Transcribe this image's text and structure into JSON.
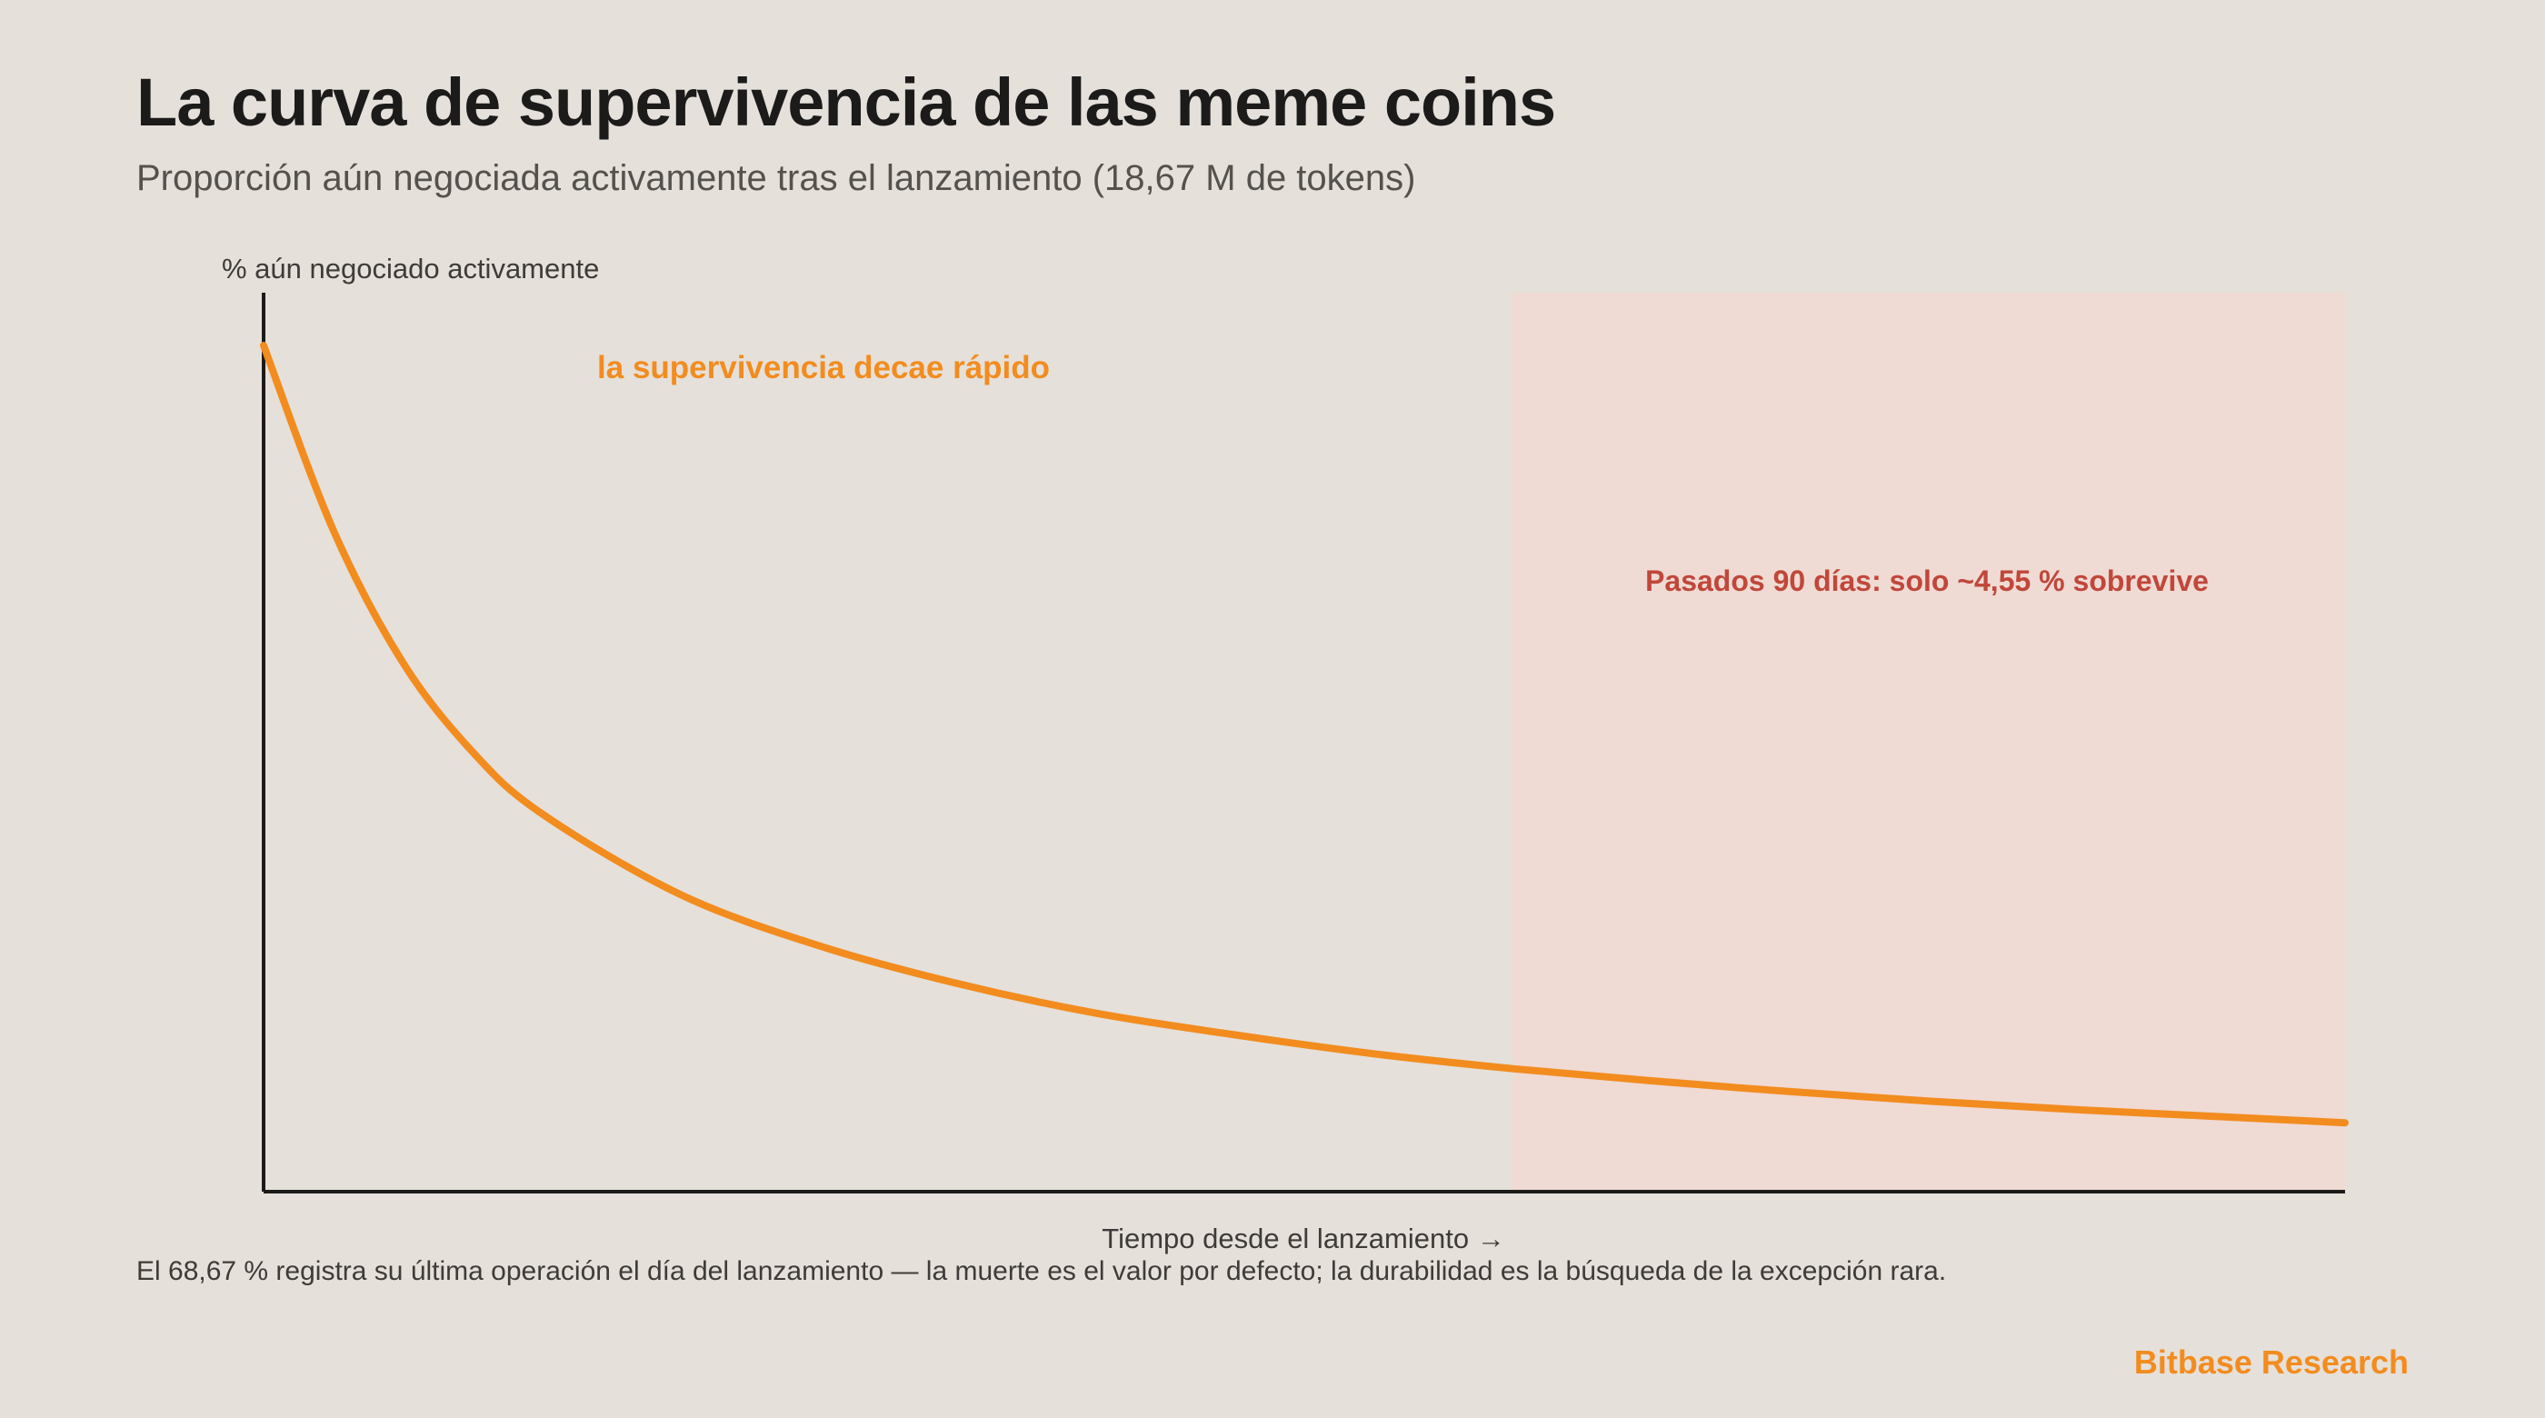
{
  "title": "La curva de supervivencia de las meme coins",
  "subtitle": "Proporción aún negociada activamente tras el lanzamiento (18,67 M de tokens)",
  "footnote": "El 68,67 % registra su última operación el día del lanzamiento — la muerte es el valor por defecto; la durabilidad es la búsqueda de la excepción rara.",
  "brand": "Bitbase Research",
  "colors": {
    "curve": "#f28c1e",
    "highlight_region": "#f0dad4",
    "highlight_text": "#c0473a",
    "axis": "#1c1b1a"
  },
  "chart_data": {
    "type": "line",
    "title": "La curva de supervivencia de las meme coins",
    "xlabel": "Tiempo desde el lanzamiento →",
    "ylabel": "% aún negociado activamente",
    "grid": false,
    "x_ticks_shown": false,
    "y_ticks_shown": false,
    "x_unit": "days",
    "xlim": [
      0,
      150
    ],
    "ylim": [
      0,
      31.3
    ],
    "series": [
      {
        "x": [
          0,
          5,
          10,
          15,
          20,
          30,
          40,
          50,
          60,
          70,
          80,
          90,
          100,
          110,
          120,
          130,
          140,
          150
        ],
        "values": [
          31.3,
          24.5,
          19.6,
          16.3,
          14.0,
          11.0,
          9.1,
          7.7,
          6.6,
          5.8,
          5.1,
          4.55,
          4.1,
          3.7,
          3.35,
          3.05,
          2.8,
          2.55
        ]
      }
    ],
    "highlight_region": {
      "x_start": 90,
      "x_end": 150
    },
    "annotations": [
      {
        "text": "la supervivencia decae rápido"
      },
      {
        "text": "Pasados 90 días: solo ~4,55 % sobrevive"
      }
    ]
  }
}
